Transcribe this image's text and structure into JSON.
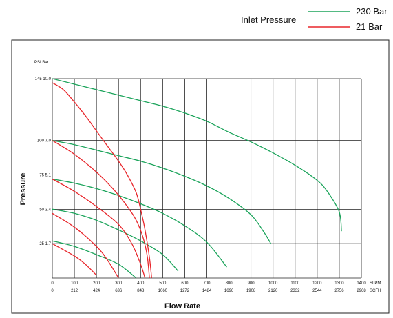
{
  "chart_data": {
    "type": "line",
    "title": "",
    "legend": {
      "title": "Inlet Pressure",
      "placement": "top-right",
      "entries": [
        {
          "name": "230 Bar",
          "color": "#1aa35a"
        },
        {
          "name": "21 Bar",
          "color": "#e8262b"
        }
      ]
    },
    "xlabel": "Flow Rate",
    "ylabel": "Pressure",
    "y_unit_label": "PSI Bar",
    "x_units": [
      "SLPM",
      "SCFH"
    ],
    "xlim": [
      0,
      1400
    ],
    "ylim": [
      0,
      145
    ],
    "grid": true,
    "x_ticks_slpm": [
      "0",
      "100",
      "200",
      "300",
      "400",
      "500",
      "600",
      "700",
      "800",
      "900",
      "1000",
      "1100",
      "1200",
      "1300",
      "1400"
    ],
    "x_ticks_scfh": [
      "0",
      "212",
      "424",
      "636",
      "848",
      "1060",
      "1272",
      "1484",
      "1696",
      "1908",
      "2120",
      "2332",
      "2544",
      "2756",
      "2968"
    ],
    "y_ticks": [
      {
        "value": 25,
        "label": "25 1.7"
      },
      {
        "value": 50,
        "label": "50 3.4"
      },
      {
        "value": 75,
        "label": "75 5.1"
      },
      {
        "value": 100,
        "label": "100 7.0"
      },
      {
        "value": 145,
        "label": "145 10.0"
      }
    ],
    "series": [
      {
        "inlet": "230 Bar",
        "color": "#1aa35a",
        "points": [
          [
            0,
            145
          ],
          [
            100,
            141
          ],
          [
            200,
            137
          ],
          [
            300,
            133
          ],
          [
            400,
            129
          ],
          [
            500,
            125
          ],
          [
            600,
            120
          ],
          [
            700,
            114
          ],
          [
            800,
            106
          ],
          [
            900,
            99
          ],
          [
            1000,
            91
          ],
          [
            1100,
            82
          ],
          [
            1200,
            71
          ],
          [
            1250,
            62
          ],
          [
            1300,
            48
          ],
          [
            1310,
            34
          ]
        ]
      },
      {
        "inlet": "230 Bar",
        "color": "#1aa35a",
        "points": [
          [
            0,
            100
          ],
          [
            100,
            97
          ],
          [
            200,
            93
          ],
          [
            300,
            89
          ],
          [
            400,
            85
          ],
          [
            500,
            80
          ],
          [
            600,
            74
          ],
          [
            700,
            67
          ],
          [
            800,
            58
          ],
          [
            900,
            46
          ],
          [
            960,
            33
          ],
          [
            990,
            25
          ]
        ]
      },
      {
        "inlet": "230 Bar",
        "color": "#1aa35a",
        "points": [
          [
            0,
            72
          ],
          [
            100,
            69
          ],
          [
            200,
            65
          ],
          [
            300,
            60
          ],
          [
            400,
            54
          ],
          [
            500,
            47
          ],
          [
            600,
            38
          ],
          [
            700,
            26
          ],
          [
            790,
            8
          ]
        ]
      },
      {
        "inlet": "230 Bar",
        "color": "#1aa35a",
        "points": [
          [
            0,
            50
          ],
          [
            100,
            47
          ],
          [
            200,
            42
          ],
          [
            300,
            35
          ],
          [
            400,
            27
          ],
          [
            500,
            17
          ],
          [
            570,
            5
          ]
        ]
      },
      {
        "inlet": "230 Bar",
        "color": "#1aa35a",
        "points": [
          [
            0,
            27
          ],
          [
            100,
            23
          ],
          [
            200,
            17
          ],
          [
            300,
            10
          ],
          [
            380,
            0
          ]
        ]
      },
      {
        "inlet": "21 Bar",
        "color": "#e8262b",
        "points": [
          [
            0,
            142
          ],
          [
            50,
            137
          ],
          [
            100,
            128
          ],
          [
            150,
            118
          ],
          [
            200,
            107
          ],
          [
            250,
            96
          ],
          [
            300,
            85
          ],
          [
            340,
            75
          ],
          [
            380,
            62
          ],
          [
            400,
            50
          ],
          [
            420,
            35
          ],
          [
            440,
            15
          ],
          [
            450,
            0
          ]
        ]
      },
      {
        "inlet": "21 Bar",
        "color": "#e8262b",
        "points": [
          [
            0,
            100
          ],
          [
            100,
            90
          ],
          [
            200,
            77
          ],
          [
            280,
            64
          ],
          [
            340,
            52
          ],
          [
            380,
            42
          ],
          [
            410,
            30
          ],
          [
            430,
            16
          ],
          [
            440,
            0
          ]
        ]
      },
      {
        "inlet": "21 Bar",
        "color": "#e8262b",
        "points": [
          [
            0,
            72
          ],
          [
            100,
            63
          ],
          [
            200,
            52
          ],
          [
            300,
            39
          ],
          [
            360,
            25
          ],
          [
            400,
            10
          ],
          [
            420,
            0
          ]
        ]
      },
      {
        "inlet": "21 Bar",
        "color": "#e8262b",
        "points": [
          [
            0,
            47
          ],
          [
            100,
            37
          ],
          [
            200,
            23
          ],
          [
            250,
            13
          ],
          [
            300,
            0
          ]
        ]
      },
      {
        "inlet": "21 Bar",
        "color": "#e8262b",
        "points": [
          [
            0,
            25
          ],
          [
            100,
            16
          ],
          [
            150,
            10
          ],
          [
            200,
            2
          ]
        ]
      }
    ]
  }
}
